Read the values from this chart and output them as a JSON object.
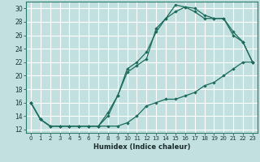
{
  "xlabel": "Humidex (Indice chaleur)",
  "bg_color": "#c2e0e0",
  "grid_color": "#ffffff",
  "line_color": "#1a6b5a",
  "xlim": [
    -0.5,
    23.5
  ],
  "ylim": [
    11.5,
    31.0
  ],
  "xticks": [
    0,
    1,
    2,
    3,
    4,
    5,
    6,
    7,
    8,
    9,
    10,
    11,
    12,
    13,
    14,
    15,
    16,
    17,
    18,
    19,
    20,
    21,
    22,
    23
  ],
  "yticks": [
    12,
    14,
    16,
    18,
    20,
    22,
    24,
    26,
    28,
    30
  ],
  "line1_x": [
    0,
    1,
    2,
    3,
    4,
    5,
    6,
    7,
    8,
    9,
    10,
    11,
    12,
    13,
    14,
    15,
    16,
    17,
    18,
    19,
    20,
    21,
    22,
    23
  ],
  "line1_y": [
    16.0,
    13.5,
    12.5,
    12.5,
    12.5,
    12.5,
    12.5,
    12.5,
    12.5,
    12.5,
    13.0,
    14.0,
    15.5,
    16.0,
    16.5,
    16.5,
    17.0,
    17.5,
    18.5,
    19.0,
    20.0,
    21.0,
    22.0,
    22.0
  ],
  "line2_x": [
    0,
    1,
    2,
    3,
    4,
    5,
    6,
    7,
    8,
    9,
    10,
    11,
    12,
    13,
    14,
    15,
    16,
    17,
    18,
    19,
    20,
    21,
    22,
    23
  ],
  "line2_y": [
    16.0,
    13.5,
    12.5,
    12.5,
    12.5,
    12.5,
    12.5,
    12.5,
    14.5,
    17.0,
    21.0,
    22.0,
    23.5,
    26.5,
    28.5,
    30.5,
    30.2,
    30.0,
    29.0,
    28.5,
    28.5,
    26.5,
    25.0,
    22.0
  ],
  "line3_x": [
    0,
    1,
    2,
    3,
    4,
    5,
    6,
    7,
    8,
    9,
    10,
    11,
    12,
    13,
    14,
    15,
    16,
    17,
    18,
    19,
    20,
    21,
    22,
    23
  ],
  "line3_y": [
    16.0,
    13.5,
    12.5,
    12.5,
    12.5,
    12.5,
    12.5,
    12.5,
    14.0,
    17.0,
    20.5,
    21.5,
    22.5,
    27.0,
    28.5,
    29.5,
    30.2,
    29.5,
    28.5,
    28.5,
    28.5,
    26.0,
    25.0,
    22.0
  ],
  "xtick_fontsize": 5.0,
  "ytick_fontsize": 5.5,
  "xlabel_fontsize": 6.0
}
